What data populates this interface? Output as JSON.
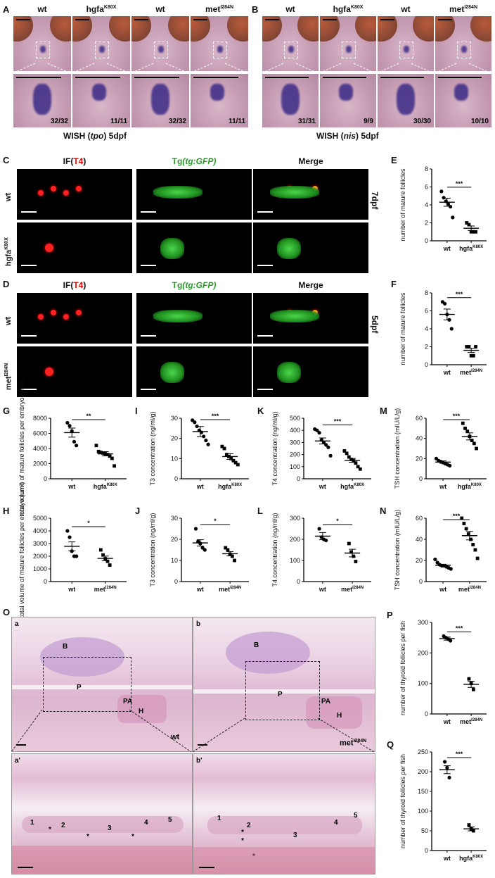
{
  "panel_labels": {
    "A": "A",
    "B": "B",
    "C": "C",
    "D": "D",
    "E": "E",
    "F": "F",
    "G": "G",
    "H": "H",
    "I": "I",
    "J": "J",
    "K": "K",
    "L": "L",
    "M": "M",
    "N": "N",
    "O": "O",
    "P": "P",
    "Q": "Q"
  },
  "wish": {
    "A": {
      "cols": [
        {
          "base": "wt",
          "sup": ""
        },
        {
          "base": "hgfa",
          "sup": "K80X"
        },
        {
          "base": "wt",
          "sup": ""
        },
        {
          "base": "met",
          "sup": "I284N"
        }
      ],
      "ratios": [
        "32/32",
        "11/11",
        "32/32",
        "11/11"
      ],
      "caption_pre": "WISH (",
      "caption_gene": "tpo",
      "caption_post": ") 5dpf"
    },
    "B": {
      "cols": [
        {
          "base": "wt",
          "sup": ""
        },
        {
          "base": "hgfa",
          "sup": "K80X"
        },
        {
          "base": "wt",
          "sup": ""
        },
        {
          "base": "met",
          "sup": "I284N"
        }
      ],
      "ratios": [
        "31/31",
        "9/9",
        "30/30",
        "10/10"
      ],
      "caption_pre": "WISH (",
      "caption_gene": "nis",
      "caption_post": ") 5dpf"
    }
  },
  "if": {
    "C": {
      "h1_pre": "IF(",
      "h1_red": "T4",
      "h1_post": ")",
      "h2_pre": "Tg",
      "h2_it": "(tg:GFP)",
      "h3": "Merge",
      "rows": [
        {
          "base": "wt",
          "sup": ""
        },
        {
          "base": "hgfa",
          "sup": "K80X"
        }
      ],
      "stage": "7dpf"
    },
    "D": {
      "h1_pre": "IF(",
      "h1_red": "T4",
      "h1_post": ")",
      "h2_pre": "Tg",
      "h2_it": "(tg:GFP)",
      "h3": "Merge",
      "rows": [
        {
          "base": "wt",
          "sup": ""
        },
        {
          "base": "met",
          "sup": "I284N"
        }
      ],
      "stage": "5dpf"
    }
  },
  "he": {
    "a": "a",
    "b": "b",
    "a2": "a'",
    "b2": "b'",
    "tags": {
      "B": "B",
      "P": "P",
      "PA": "PA",
      "H": "H"
    },
    "geno_a": "wt",
    "geno_b_base": "met",
    "geno_b_sup": "I284N",
    "follicles": [
      "1",
      "2",
      "3",
      "4",
      "5"
    ],
    "star": "*"
  },
  "chart_data": [
    {
      "id": "E",
      "type": "scatter",
      "ylabel": "number of mature follicles",
      "ylim": [
        0,
        8
      ],
      "yticks": [
        0,
        2,
        4,
        6,
        8
      ],
      "groups": [
        {
          "base": "wt",
          "sup": "",
          "mean": 4.3,
          "sem": 0.45,
          "points": [
            5.5,
            4.8,
            4.4,
            4.1,
            3.8,
            2.6
          ]
        },
        {
          "base": "hgfa",
          "sup": "K80X",
          "mean": 1.4,
          "sem": 0.25,
          "points": [
            2.0,
            1.8,
            1.0,
            1.0,
            1.0
          ]
        }
      ],
      "sig": "***"
    },
    {
      "id": "F",
      "type": "scatter",
      "ylabel": "number of mature follicles",
      "ylim": [
        0,
        8
      ],
      "yticks": [
        0,
        2,
        4,
        6,
        8
      ],
      "groups": [
        {
          "base": "wt",
          "sup": "",
          "mean": 5.6,
          "sem": 0.6,
          "points": [
            7.0,
            6.8,
            5.6,
            5.0,
            4.0
          ]
        },
        {
          "base": "met",
          "sup": "I284N",
          "mean": 1.6,
          "sem": 0.24,
          "points": [
            2.0,
            2.0,
            1.0,
            1.0,
            2.0
          ]
        }
      ],
      "sig": "***"
    },
    {
      "id": "G",
      "type": "scatter",
      "ylabel": "total volume of mature follicles per embryo (um³)",
      "ylim": [
        0,
        8000
      ],
      "yticks": [
        0,
        2000,
        4000,
        6000,
        8000
      ],
      "groups": [
        {
          "base": "wt",
          "sup": "",
          "mean": 6100,
          "sem": 600,
          "points": [
            7400,
            7000,
            6300,
            4900,
            4400
          ]
        },
        {
          "base": "hgfa",
          "sup": "K80X",
          "mean": 3300,
          "sem": 280,
          "points": [
            4400,
            3600,
            3500,
            3400,
            3300,
            3200,
            3000,
            2700,
            1700
          ]
        }
      ],
      "sig": "**"
    },
    {
      "id": "H",
      "type": "scatter",
      "ylabel": "total volume of mature follicles per embryo (um³)",
      "ylim": [
        0,
        5000
      ],
      "yticks": [
        0,
        1000,
        2000,
        3000,
        4000,
        5000
      ],
      "groups": [
        {
          "base": "wt",
          "sup": "",
          "mean": 2780,
          "sem": 350,
          "points": [
            4000,
            3500,
            2400,
            2000,
            2000
          ]
        },
        {
          "base": "met",
          "sup": "I284N",
          "mean": 1830,
          "sem": 180,
          "points": [
            2500,
            2100,
            1800,
            1600,
            1300
          ]
        }
      ],
      "sig": "*"
    },
    {
      "id": "I",
      "type": "scatter",
      "ylabel": "T3 concentration (ng/ml/g)",
      "ylim": [
        0,
        30
      ],
      "yticks": [
        0,
        10,
        20,
        30
      ],
      "groups": [
        {
          "base": "wt",
          "sup": "",
          "mean": 23.4,
          "sem": 2.5,
          "points": [
            29,
            28,
            26,
            24,
            23,
            21,
            19,
            17
          ]
        },
        {
          "base": "hgfa",
          "sup": "K80X",
          "mean": 11,
          "sem": 1.4,
          "points": [
            16,
            15,
            12,
            11,
            10,
            9,
            8,
            7
          ]
        }
      ],
      "sig": "***"
    },
    {
      "id": "J",
      "type": "scatter",
      "ylabel": "T3 concentration (ng/ml/g)",
      "ylim": [
        0,
        30
      ],
      "yticks": [
        0,
        10,
        20,
        30
      ],
      "groups": [
        {
          "base": "wt",
          "sup": "",
          "mean": 18.3,
          "sem": 1.5,
          "points": [
            25,
            19,
            18,
            16,
            15
          ]
        },
        {
          "base": "met",
          "sup": "I284N",
          "mean": 13.2,
          "sem": 1.0,
          "points": [
            16,
            15,
            13,
            12,
            10
          ]
        }
      ],
      "sig": "*"
    },
    {
      "id": "K",
      "type": "scatter",
      "ylabel": "T4 concentration (ng/ml/g)",
      "ylim": [
        0,
        500
      ],
      "yticks": [
        0,
        100,
        200,
        300,
        400,
        500
      ],
      "groups": [
        {
          "base": "wt",
          "sup": "",
          "mean": 312,
          "sem": 25,
          "points": [
            410,
            400,
            380,
            320,
            300,
            280,
            260,
            190
          ]
        },
        {
          "base": "hgfa",
          "sup": "K80X",
          "mean": 152,
          "sem": 16,
          "points": [
            230,
            210,
            180,
            160,
            150,
            130,
            100,
            80
          ]
        }
      ],
      "sig": "***"
    },
    {
      "id": "L",
      "type": "scatter",
      "ylabel": "T4 concentration (ng/ml/g)",
      "ylim": [
        0,
        300
      ],
      "yticks": [
        0,
        100,
        200,
        300
      ],
      "groups": [
        {
          "base": "wt",
          "sup": "",
          "mean": 215,
          "sem": 17,
          "points": [
            250,
            210,
            200,
            195
          ]
        },
        {
          "base": "met",
          "sup": "I284N",
          "mean": 135,
          "sem": 18,
          "points": [
            180,
            140,
            120,
            95
          ]
        }
      ],
      "sig": "*"
    },
    {
      "id": "M",
      "type": "scatter",
      "ylabel": "TSH concentration (mIU/L/g)",
      "ylim": [
        0,
        60
      ],
      "yticks": [
        0,
        20,
        40,
        60
      ],
      "groups": [
        {
          "base": "wt",
          "sup": "",
          "mean": 16.5,
          "sem": 1.2,
          "points": [
            20,
            18,
            17,
            16,
            15,
            14,
            13
          ]
        },
        {
          "base": "hgfa",
          "sup": "K80X",
          "mean": 42,
          "sem": 3.5,
          "points": [
            55,
            50,
            47,
            42,
            38,
            35,
            30
          ]
        }
      ],
      "sig": "***"
    },
    {
      "id": "N",
      "type": "scatter",
      "ylabel": "TSH concentration (mIU/L/g)",
      "ylim": [
        0,
        60
      ],
      "yticks": [
        0,
        20,
        40,
        60
      ],
      "groups": [
        {
          "base": "wt",
          "sup": "",
          "mean": 15.5,
          "sem": 0.9,
          "points": [
            21,
            18,
            16,
            15,
            15,
            14,
            13,
            12
          ]
        },
        {
          "base": "met",
          "sup": "I284N",
          "mean": 43.5,
          "sem": 4,
          "points": [
            60,
            55,
            50,
            45,
            40,
            35,
            30,
            22
          ]
        }
      ],
      "sig": "***"
    },
    {
      "id": "P",
      "type": "scatter",
      "ylabel": "number of thyroid follicles per fish",
      "ylim": [
        0,
        300
      ],
      "yticks": [
        0,
        100,
        200,
        300
      ],
      "groups": [
        {
          "base": "wt",
          "sup": "",
          "mean": 247,
          "sem": 5,
          "points": [
            255,
            250,
            245,
            240
          ]
        },
        {
          "base": "met",
          "sup": "I284N",
          "mean": 97,
          "sem": 10,
          "points": [
            115,
            100,
            80
          ]
        }
      ],
      "sig": "***"
    },
    {
      "id": "Q",
      "type": "scatter",
      "ylabel": "number of thyroid follicles per fish",
      "ylim": [
        0,
        250
      ],
      "yticks": [
        0,
        50,
        100,
        150,
        200,
        250
      ],
      "groups": [
        {
          "base": "wt",
          "sup": "",
          "mean": 205,
          "sem": 10,
          "points": [
            225,
            210,
            185
          ]
        },
        {
          "base": "hgfa",
          "sup": "K80X",
          "mean": 55,
          "sem": 5,
          "points": [
            65,
            55,
            50
          ]
        }
      ],
      "sig": "***"
    }
  ]
}
